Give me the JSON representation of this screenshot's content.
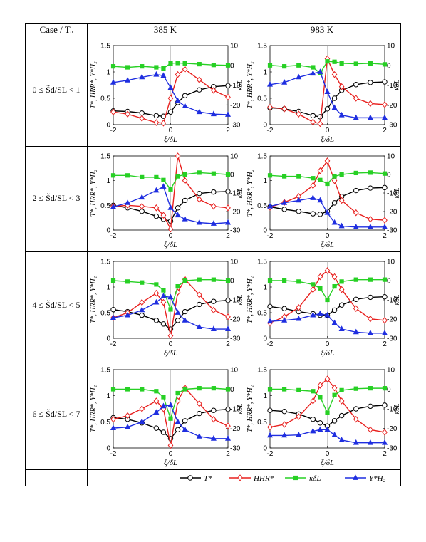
{
  "header": {
    "case_col": "Case / Tₒ",
    "col1": "385 K",
    "col2": "983 K"
  },
  "rows": [
    {
      "label": "0 ≤ S̃d/SL < 1"
    },
    {
      "label": "2 ≤ S̃d/SL < 3"
    },
    {
      "label": "4 ≤ S̃d/SL < 5"
    },
    {
      "label": "6 ≤ S̃d/SL < 7"
    }
  ],
  "axes": {
    "xlabel": "ξ/δL",
    "ylabel_left": "T*, HRR*, Y*H₂",
    "ylabel_right": "κδL",
    "xlim": [
      -2,
      2
    ],
    "ylim_left": [
      0,
      1.5
    ],
    "ylim_right": [
      -30,
      10
    ],
    "xticks": [
      "-2",
      "0",
      "2"
    ],
    "yticks_left": [
      "0",
      "0.5",
      "1",
      "1.5"
    ],
    "yticks_right": [
      "-30",
      "-20",
      "-10",
      "0",
      "10"
    ]
  },
  "legend": [
    "T*",
    "HHR*",
    "κδL",
    "Y*H₂"
  ],
  "colors": {
    "T": "#000000",
    "HRR": "#e8201e",
    "kappa": "#27d024",
    "Y": "#1f2ee0"
  },
  "chart_data": [
    {
      "type": "line",
      "row": 0,
      "col": "385 K",
      "x": [
        -2,
        -1.5,
        -1,
        -0.5,
        -0.25,
        0,
        0.25,
        0.5,
        1,
        1.5,
        2
      ],
      "series": [
        {
          "name": "T*",
          "values": [
            0.26,
            0.25,
            0.22,
            0.17,
            0.16,
            0.24,
            0.42,
            0.55,
            0.66,
            0.72,
            0.74
          ]
        },
        {
          "name": "HHR*",
          "values": [
            0.24,
            0.2,
            0.12,
            0.04,
            0.03,
            0.5,
            0.95,
            1.05,
            0.85,
            0.65,
            0.52
          ]
        },
        {
          "name": "κδL",
          "values": [
            -0.5,
            -1,
            -0.5,
            -1,
            -1.5,
            1,
            1.2,
            1,
            0.6,
            0.2,
            0
          ]
        },
        {
          "name": "Y*H₂",
          "values": [
            0.8,
            0.84,
            0.9,
            0.95,
            0.93,
            0.7,
            0.45,
            0.35,
            0.24,
            0.2,
            0.19
          ]
        }
      ]
    },
    {
      "type": "line",
      "row": 0,
      "col": "983 K",
      "x": [
        -2,
        -1.5,
        -1,
        -0.5,
        -0.25,
        0,
        0.25,
        0.5,
        1,
        1.5,
        2
      ],
      "series": [
        {
          "name": "T*",
          "values": [
            0.32,
            0.3,
            0.25,
            0.17,
            0.15,
            0.3,
            0.5,
            0.65,
            0.76,
            0.8,
            0.81
          ]
        },
        {
          "name": "HHR*",
          "values": [
            0.33,
            0.3,
            0.2,
            0.05,
            0.02,
            1.25,
            0.95,
            0.72,
            0.5,
            0.4,
            0.38
          ]
        },
        {
          "name": "κδL",
          "values": [
            0,
            -0.5,
            0,
            -1,
            -4,
            2,
            1.8,
            1,
            0.8,
            1,
            0.5
          ]
        },
        {
          "name": "Y*H₂",
          "values": [
            0.76,
            0.8,
            0.9,
            0.97,
            1.0,
            0.62,
            0.32,
            0.18,
            0.13,
            0.13,
            0.13
          ]
        }
      ]
    },
    {
      "type": "line",
      "row": 1,
      "col": "385 K",
      "x": [
        -2,
        -1.5,
        -1,
        -0.5,
        -0.25,
        0,
        0.25,
        0.5,
        1,
        1.5,
        2
      ],
      "series": [
        {
          "name": "T*",
          "values": [
            0.5,
            0.45,
            0.38,
            0.28,
            0.22,
            0.18,
            0.45,
            0.6,
            0.74,
            0.77,
            0.78
          ]
        },
        {
          "name": "HHR*",
          "values": [
            0.48,
            0.5,
            0.48,
            0.45,
            0.3,
            0.02,
            1.5,
            1.0,
            0.62,
            0.48,
            0.45
          ]
        },
        {
          "name": "κδL",
          "values": [
            -0.5,
            -0.5,
            -1.5,
            -1.5,
            -3,
            -8,
            -1,
            0,
            1,
            0.5,
            0
          ]
        },
        {
          "name": "Y*H₂",
          "values": [
            0.47,
            0.55,
            0.66,
            0.8,
            0.88,
            0.45,
            0.3,
            0.22,
            0.15,
            0.13,
            0.15
          ]
        }
      ]
    },
    {
      "type": "line",
      "row": 1,
      "col": "983 K",
      "x": [
        -2,
        -1.5,
        -1,
        -0.5,
        -0.25,
        0,
        0.25,
        0.5,
        1,
        1.5,
        2
      ],
      "series": [
        {
          "name": "T*",
          "values": [
            0.47,
            0.42,
            0.38,
            0.33,
            0.32,
            0.38,
            0.55,
            0.68,
            0.8,
            0.85,
            0.86
          ]
        },
        {
          "name": "HHR*",
          "values": [
            0.46,
            0.56,
            0.68,
            0.9,
            1.2,
            1.4,
            1.0,
            0.6,
            0.35,
            0.22,
            0.2
          ]
        },
        {
          "name": "κδL",
          "values": [
            -0.5,
            -1,
            -1,
            -2,
            -3,
            -5,
            -1,
            0,
            0.8,
            1,
            0.5
          ]
        },
        {
          "name": "Y*H₂",
          "values": [
            0.48,
            0.55,
            0.6,
            0.65,
            0.6,
            0.35,
            0.15,
            0.08,
            0.06,
            0.06,
            0.06
          ]
        }
      ]
    },
    {
      "type": "line",
      "row": 2,
      "col": "385 K",
      "x": [
        -2,
        -1.5,
        -1,
        -0.5,
        -0.25,
        0,
        0.25,
        0.5,
        1,
        1.5,
        2
      ],
      "series": [
        {
          "name": "T*",
          "values": [
            0.56,
            0.52,
            0.45,
            0.35,
            0.28,
            0.18,
            0.35,
            0.52,
            0.66,
            0.72,
            0.74
          ]
        },
        {
          "name": "HHR*",
          "values": [
            0.4,
            0.5,
            0.7,
            0.88,
            0.7,
            0.05,
            0.9,
            1.15,
            0.85,
            0.55,
            0.42
          ]
        },
        {
          "name": "κδL",
          "values": [
            0,
            -0.5,
            -1,
            -2,
            -5,
            -15,
            -3,
            0,
            0.5,
            0.5,
            0
          ]
        },
        {
          "name": "Y*H₂",
          "values": [
            0.4,
            0.45,
            0.55,
            0.7,
            0.82,
            0.8,
            0.5,
            0.35,
            0.22,
            0.18,
            0.18
          ]
        }
      ]
    },
    {
      "type": "line",
      "row": 2,
      "col": "983 K",
      "x": [
        -2,
        -1.5,
        -1,
        -0.5,
        -0.25,
        0,
        0.25,
        0.5,
        1,
        1.5,
        2
      ],
      "series": [
        {
          "name": "T*",
          "values": [
            0.62,
            0.58,
            0.52,
            0.48,
            0.45,
            0.45,
            0.55,
            0.65,
            0.76,
            0.8,
            0.81
          ]
        },
        {
          "name": "HHR*",
          "values": [
            0.3,
            0.42,
            0.6,
            0.95,
            1.2,
            1.32,
            1.2,
            0.95,
            0.58,
            0.38,
            0.35
          ]
        },
        {
          "name": "κδL",
          "values": [
            0,
            0,
            -0.5,
            -2,
            -4,
            -10,
            -3,
            -0.5,
            0.5,
            0.5,
            0.5
          ]
        },
        {
          "name": "Y*H₂",
          "values": [
            0.33,
            0.35,
            0.38,
            0.45,
            0.48,
            0.45,
            0.3,
            0.18,
            0.12,
            0.1,
            0.1
          ]
        }
      ]
    },
    {
      "type": "line",
      "row": 3,
      "col": "385 K",
      "x": [
        -2,
        -1.5,
        -1,
        -0.5,
        -0.25,
        0,
        0.25,
        0.5,
        1,
        1.5,
        2
      ],
      "series": [
        {
          "name": "T*",
          "values": [
            0.58,
            0.55,
            0.48,
            0.38,
            0.3,
            0.18,
            0.35,
            0.52,
            0.66,
            0.72,
            0.74
          ]
        },
        {
          "name": "HHR*",
          "values": [
            0.55,
            0.62,
            0.75,
            0.9,
            0.75,
            0.05,
            0.9,
            1.15,
            0.85,
            0.55,
            0.42
          ]
        },
        {
          "name": "κδL",
          "values": [
            0,
            0,
            0,
            -1,
            -4,
            -15,
            -2,
            0,
            0.5,
            0.5,
            0
          ]
        },
        {
          "name": "Y*H₂",
          "values": [
            0.38,
            0.4,
            0.5,
            0.68,
            0.8,
            0.82,
            0.5,
            0.35,
            0.22,
            0.18,
            0.18
          ]
        }
      ]
    },
    {
      "type": "line",
      "row": 3,
      "col": "983 K",
      "x": [
        -2,
        -1.5,
        -1,
        -0.5,
        -0.25,
        0,
        0.25,
        0.5,
        1,
        1.5,
        2
      ],
      "series": [
        {
          "name": "T*",
          "values": [
            0.72,
            0.7,
            0.65,
            0.55,
            0.48,
            0.42,
            0.52,
            0.62,
            0.75,
            0.8,
            0.82
          ]
        },
        {
          "name": "HHR*",
          "values": [
            0.4,
            0.45,
            0.6,
            0.9,
            1.2,
            1.32,
            1.15,
            0.9,
            0.55,
            0.35,
            0.3
          ]
        },
        {
          "name": "κδL",
          "values": [
            0,
            0,
            -0.5,
            -1,
            -4,
            -12,
            -3,
            -0.5,
            0.3,
            0.5,
            0.5
          ]
        },
        {
          "name": "Y*H₂",
          "values": [
            0.24,
            0.24,
            0.25,
            0.32,
            0.35,
            0.35,
            0.25,
            0.15,
            0.1,
            0.1,
            0.1
          ]
        }
      ]
    }
  ]
}
